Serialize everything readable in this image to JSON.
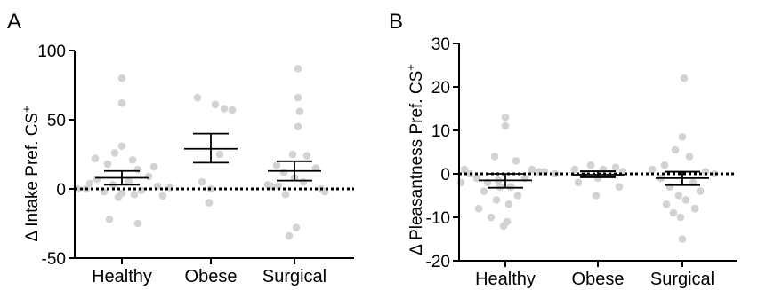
{
  "chart_data": [
    {
      "panel": "A",
      "type": "scatter",
      "ylabel": "Δ Intake Pref. CS",
      "ylabel_sup": "+",
      "ylim": [
        -50,
        100
      ],
      "yticks": [
        -50,
        0,
        50,
        100
      ],
      "categories": [
        "Healthy",
        "Obese",
        "Surgical"
      ],
      "reference_line": 0,
      "summary": [
        {
          "mean": 8,
          "sem_low": 3,
          "sem_high": 13
        },
        {
          "mean": 29,
          "sem_low": 19,
          "sem_high": 40
        },
        {
          "mean": 13,
          "sem_low": 6,
          "sem_high": 20
        }
      ],
      "points": [
        [
          80,
          62,
          31,
          26,
          22,
          21,
          18,
          14,
          9,
          7,
          5,
          3,
          2,
          0,
          -1,
          -2,
          -3,
          -4,
          -6,
          -22,
          -25,
          16,
          -5,
          4,
          1,
          0
        ],
        [
          66,
          61,
          58,
          57,
          25,
          5,
          0,
          -10
        ],
        [
          87,
          66,
          56,
          45,
          25,
          24,
          17,
          15,
          12,
          8,
          5,
          3,
          2,
          0,
          -2,
          -4,
          -28,
          -34,
          2
        ]
      ],
      "x_offsets": [
        [
          0,
          0,
          0,
          -8,
          -30,
          12,
          -16,
          18,
          30,
          -28,
          8,
          -10,
          40,
          -40,
          22,
          -20,
          0,
          14,
          -4,
          -14,
          18,
          36,
          46,
          -36,
          54,
          -50
        ],
        [
          -15,
          5,
          15,
          24,
          10,
          -10,
          0,
          -2
        ],
        [
          4,
          4,
          6,
          4,
          -2,
          14,
          -20,
          24,
          -12,
          0,
          10,
          -30,
          -18,
          30,
          34,
          -10,
          2,
          -6,
          -26
        ]
      ]
    },
    {
      "panel": "B",
      "type": "scatter",
      "ylabel": "Δ Pleasantness Pref. CS",
      "ylabel_sup": "+",
      "ylim": [
        -20,
        30
      ],
      "yticks": [
        -20,
        -10,
        0,
        10,
        20,
        30
      ],
      "categories": [
        "Healthy",
        "Obese",
        "Surgical"
      ],
      "reference_line": 0,
      "summary": [
        {
          "mean": -1.5,
          "sem_low": -3.2,
          "sem_high": 0
        },
        {
          "mean": -0.2,
          "sem_low": -0.8,
          "sem_high": 0.6
        },
        {
          "mean": -1,
          "sem_low": -2.6,
          "sem_high": 0.5
        }
      ],
      "points": [
        [
          13,
          11,
          4,
          3,
          1,
          0.5,
          0,
          0,
          -1,
          -1,
          -2,
          -2,
          -3,
          -3,
          -4,
          -5,
          -6,
          -7,
          -8,
          -10,
          -11,
          -12,
          1,
          0.5,
          -1.5
        ],
        [
          2,
          1.5,
          1,
          1,
          0.5,
          0,
          0,
          -1,
          -2,
          -3,
          -5
        ],
        [
          22,
          8.5,
          5.5,
          4,
          2,
          1,
          0.5,
          0,
          -1,
          -2,
          -3,
          -4,
          -5,
          -6,
          -7,
          -8,
          -9,
          -10,
          -15
        ]
      ],
      "x_offsets": [
        [
          0,
          0,
          -12,
          12,
          30,
          44,
          56,
          -40,
          -32,
          22,
          -50,
          -20,
          6,
          -6,
          -24,
          14,
          -10,
          4,
          -30,
          -16,
          2,
          -2,
          -46,
          38,
          -8
        ],
        [
          -8,
          20,
          -26,
          6,
          28,
          14,
          -16,
          0,
          -22,
          24,
          -2
        ],
        [
          2,
          0,
          -8,
          8,
          -20,
          -34,
          26,
          36,
          -24,
          12,
          -14,
          20,
          -4,
          4,
          -18,
          14,
          -10,
          -2,
          0
        ]
      ]
    }
  ],
  "colors": {
    "points": "#d3d3d3",
    "axes": "#000000"
  }
}
